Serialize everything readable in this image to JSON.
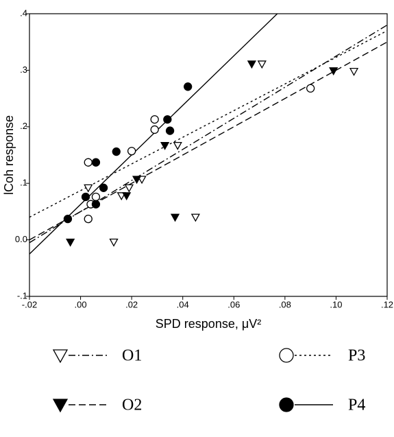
{
  "chart_data": {
    "type": "scatter",
    "x_label": "SPD response, μV²",
    "y_label": "lCoh response",
    "xlim": [
      -0.02,
      0.12
    ],
    "ylim": [
      -0.1,
      0.4
    ],
    "xticks": [
      {
        "value": -0.02,
        "label": "-.02"
      },
      {
        "value": 0,
        "label": ".00"
      },
      {
        "value": 0.02,
        "label": ".02"
      },
      {
        "value": 0.04,
        "label": ".04"
      },
      {
        "value": 0.06,
        "label": ".06"
      },
      {
        "value": 0.08,
        "label": ".08"
      },
      {
        "value": 0.1,
        "label": ".10"
      },
      {
        "value": 0.12,
        "label": ".12"
      }
    ],
    "yticks": [
      {
        "value": -0.1,
        "label": "-.1"
      },
      {
        "value": 0,
        "label": "0.0"
      },
      {
        "value": 0.1,
        "label": ".1"
      },
      {
        "value": 0.2,
        "label": ".2"
      },
      {
        "value": 0.3,
        "label": ".3"
      },
      {
        "value": 0.4,
        "label": ".4"
      }
    ],
    "series": [
      {
        "name": "O1",
        "color": "#000",
        "marker": "triangle-down",
        "filled": false,
        "dash": "dashdot",
        "x": [
          0.003,
          0.013,
          0.016,
          0.019,
          0.024,
          0.038,
          0.045,
          0.071,
          0.107
        ],
        "values": [
          0.092,
          -0.004,
          0.078,
          0.092,
          0.107,
          0.167,
          0.04,
          0.311,
          0.298
        ],
        "fit_x": [
          -0.02,
          0.12
        ],
        "fit_y": [
          -0.005,
          0.38
        ]
      },
      {
        "name": "O2",
        "color": "#000",
        "marker": "triangle-down",
        "filled": true,
        "dash": "dashed",
        "x": [
          -0.004,
          0.018,
          0.022,
          0.033,
          0.037,
          0.067,
          0.099
        ],
        "values": [
          -0.004,
          0.078,
          0.107,
          0.167,
          0.04,
          0.311,
          0.299
        ],
        "fit_x": [
          -0.02,
          0.12
        ],
        "fit_y": [
          0,
          0.35
        ]
      },
      {
        "name": "P3",
        "color": "#000",
        "marker": "circle",
        "filled": false,
        "dash": "dotted",
        "x": [
          0.003,
          0.003,
          0.004,
          0.006,
          0.02,
          0.029,
          0.029,
          0.09
        ],
        "values": [
          0.137,
          0.037,
          0.063,
          0.076,
          0.157,
          0.195,
          0.213,
          0.268
        ],
        "fit_x": [
          -0.02,
          0.12
        ],
        "fit_y": [
          0.04,
          0.37
        ]
      },
      {
        "name": "P4",
        "color": "#000",
        "marker": "circle",
        "filled": true,
        "dash": "solid",
        "x": [
          -0.005,
          0.002,
          0.006,
          0.006,
          0.009,
          0.014,
          0.034,
          0.035,
          0.042
        ],
        "values": [
          0.037,
          0.076,
          0.137,
          0.063,
          0.092,
          0.156,
          0.213,
          0.193,
          0.271
        ],
        "fit_x": [
          -0.02,
          0.077
        ],
        "fit_y": [
          -0.025,
          0.4
        ]
      }
    ]
  }
}
